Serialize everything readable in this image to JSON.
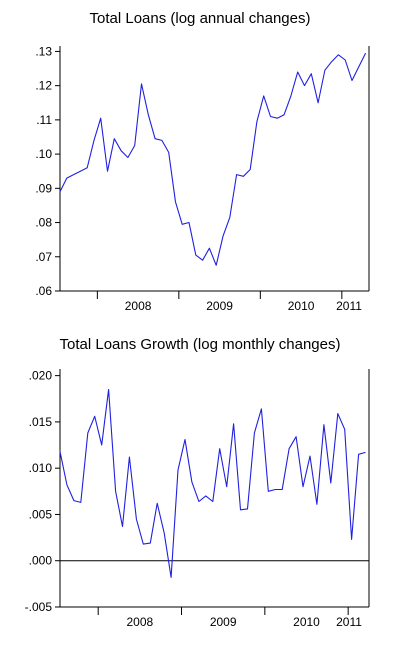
{
  "chart_data": [
    {
      "type": "line",
      "title": "Total Loans (log annual changes)",
      "xlabel": "",
      "ylabel": "",
      "series_color": "#2020e0",
      "x_ticks": [
        "2008",
        "2009",
        "2010",
        "2011"
      ],
      "y_ticks": [
        ".06",
        ".07",
        ".08",
        ".09",
        ".10",
        ".11",
        ".12",
        ".13"
      ],
      "ylim": [
        0.06,
        0.131
      ],
      "x_start": "2007-07",
      "values": [
        0.089,
        0.093,
        0.094,
        0.095,
        0.096,
        0.104,
        0.1105,
        0.095,
        0.1045,
        0.101,
        0.099,
        0.1025,
        0.1205,
        0.1115,
        0.1045,
        0.104,
        0.1005,
        0.086,
        0.0795,
        0.08,
        0.0705,
        0.069,
        0.0725,
        0.0675,
        0.076,
        0.0815,
        0.094,
        0.0935,
        0.0955,
        0.1095,
        0.117,
        0.111,
        0.1105,
        0.1115,
        0.117,
        0.124,
        0.12,
        0.1235,
        0.115,
        0.1245,
        0.127,
        0.129,
        0.1275,
        0.1215,
        0.1255,
        0.1295
      ],
      "grid": false,
      "zero_line": false
    },
    {
      "type": "line",
      "title": "Total Loans Growth (log monthly changes)",
      "xlabel": "",
      "ylabel": "",
      "series_color": "#2020e0",
      "x_ticks": [
        "2008",
        "2009",
        "2010",
        "2011"
      ],
      "y_ticks": [
        "-.005",
        ".000",
        ".005",
        ".010",
        ".015",
        ".020"
      ],
      "ylim": [
        -0.005,
        0.0205
      ],
      "x_start": "2007-07",
      "values": [
        0.0118,
        0.0082,
        0.0065,
        0.0063,
        0.0138,
        0.0156,
        0.0125,
        0.0185,
        0.0075,
        0.0037,
        0.0112,
        0.0045,
        0.0018,
        0.0019,
        0.0062,
        0.003,
        -0.0018,
        0.0098,
        0.0131,
        0.0085,
        0.0064,
        0.007,
        0.0064,
        0.0121,
        0.008,
        0.0148,
        0.0055,
        0.0056,
        0.0138,
        0.0164,
        0.0075,
        0.0077,
        0.0077,
        0.0121,
        0.0134,
        0.008,
        0.0113,
        0.0061,
        0.0147,
        0.0084,
        0.0159,
        0.0142,
        0.0023,
        0.0115,
        0.0117
      ],
      "grid": false,
      "zero_line": true
    }
  ]
}
